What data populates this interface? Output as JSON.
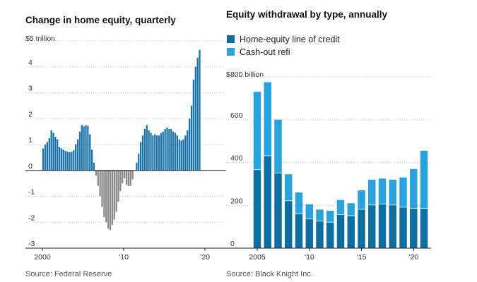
{
  "chart_data": [
    {
      "type": "bar",
      "title": "Change in home equity, quarterly",
      "unit_label": "$5 trillion",
      "ylim": [
        -3,
        5
      ],
      "y_ticks": [
        {
          "value": 4,
          "label": "4"
        },
        {
          "value": 3,
          "label": "3"
        },
        {
          "value": 2,
          "label": "2"
        },
        {
          "value": 1,
          "label": "1"
        },
        {
          "value": 0,
          "label": "0"
        },
        {
          "value": -1,
          "label": "-1"
        },
        {
          "value": -2,
          "label": "-2"
        },
        {
          "value": -3,
          "label": "-3"
        }
      ],
      "x_ticks": [
        {
          "value": 2000,
          "label": "2000"
        },
        {
          "value": 2010,
          "label": "’10"
        },
        {
          "value": 2020,
          "label": "’20"
        }
      ],
      "x_start": 2000,
      "period": 0.25,
      "values": [
        0.85,
        1.0,
        1.1,
        1.25,
        1.55,
        1.45,
        1.3,
        1.2,
        0.9,
        0.85,
        0.8,
        0.75,
        0.72,
        0.7,
        0.72,
        0.78,
        1.0,
        1.2,
        1.5,
        1.75,
        1.7,
        1.75,
        1.72,
        1.4,
        0.8,
        0.3,
        -0.2,
        -0.6,
        -1.0,
        -1.4,
        -1.8,
        -2.0,
        -2.25,
        -2.3,
        -2.1,
        -1.9,
        -1.6,
        -1.2,
        -0.8,
        -0.5,
        -0.3,
        -0.55,
        -0.6,
        -0.6,
        -0.35,
        0.0,
        0.3,
        0.65,
        1.1,
        1.35,
        1.6,
        1.75,
        1.55,
        1.45,
        1.35,
        1.4,
        1.35,
        1.35,
        1.45,
        1.5,
        1.6,
        1.65,
        1.6,
        1.6,
        1.5,
        1.45,
        1.35,
        1.2,
        1.15,
        1.2,
        1.35,
        1.55,
        2.0,
        2.5,
        3.5,
        4.0,
        4.35,
        4.65
      ],
      "colors": {
        "positive": "#1a73a8",
        "negative": "#8a8a8a"
      }
    },
    {
      "type": "bar",
      "stacked": true,
      "title": "Equity withdrawal by type, annually",
      "unit_label": "$800 billion",
      "ylim": [
        0,
        800
      ],
      "y_ticks": [
        {
          "value": 600,
          "label": "600"
        },
        {
          "value": 400,
          "label": "400"
        },
        {
          "value": 200,
          "label": "200"
        },
        {
          "value": 0,
          "label": "0"
        }
      ],
      "x_ticks": [
        {
          "value": 2005,
          "label": "2005"
        },
        {
          "value": 2010,
          "label": "’10"
        },
        {
          "value": 2015,
          "label": "’15"
        },
        {
          "value": 2020,
          "label": "’20"
        }
      ],
      "categories": [
        2005,
        2006,
        2007,
        2008,
        2009,
        2010,
        2011,
        2012,
        2013,
        2014,
        2015,
        2016,
        2017,
        2018,
        2019,
        2020,
        2021
      ],
      "series": [
        {
          "name": "Home-equity line of credit",
          "color": "#0f6ea0",
          "values": [
            365,
            430,
            350,
            220,
            160,
            135,
            125,
            120,
            155,
            150,
            180,
            200,
            205,
            200,
            190,
            185,
            185
          ]
        },
        {
          "name": "Cash-out refi",
          "color": "#2aa3dd",
          "values": [
            365,
            345,
            250,
            125,
            100,
            70,
            55,
            55,
            70,
            60,
            90,
            120,
            120,
            120,
            140,
            185,
            270
          ]
        }
      ]
    }
  ],
  "sources": {
    "left": "Source: Federal Reserve",
    "right": "Source: Black Knight Inc."
  }
}
